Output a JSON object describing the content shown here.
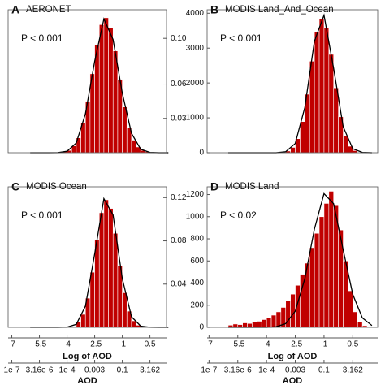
{
  "chart_data": [
    {
      "type": "histogram",
      "panel": "A",
      "title": "AERONET",
      "annotation": "P < 0.001",
      "color": "#c00000",
      "bins": [
        -6,
        -5.75,
        -5.5,
        -5.25,
        -5,
        -4.75,
        -4.5,
        -4.25,
        -4,
        -3.75,
        -3.5,
        -3.25,
        -3,
        -2.75,
        -2.5,
        -2.25,
        -2,
        -1.75,
        -1.5,
        -1.25,
        -1,
        -0.75,
        -0.5,
        -0.25,
        0,
        0.25,
        0.5,
        0.75,
        1,
        1.25,
        1.5
      ],
      "values": [
        0,
        0,
        0,
        0,
        0,
        0,
        0,
        0.001,
        0.002,
        0.006,
        0.013,
        0.026,
        0.045,
        0.069,
        0.094,
        0.112,
        0.118,
        0.109,
        0.089,
        0.064,
        0.04,
        0.022,
        0.011,
        0.005,
        0.002,
        0.001,
        0,
        0,
        0,
        0
      ],
      "axis": "y2",
      "xlim": [
        -7.2,
        1.4
      ],
      "y2lim": [
        0,
        0.125
      ],
      "y2ticks": [
        0.03,
        0.06,
        {
          "value": 0.1,
          "label": "0.10"
        }
      ],
      "fit": {
        "x": [
          -6,
          -5.5,
          -5,
          -4.5,
          -4,
          -3.5,
          -3,
          -2.5,
          -2,
          -1.5,
          -1,
          -0.5,
          0,
          0.5,
          1,
          1.5
        ],
        "y": [
          0,
          0,
          0,
          0.0001,
          0.0013,
          0.0085,
          0.034,
          0.08,
          0.117,
          0.099,
          0.052,
          0.017,
          0.003,
          0.0003,
          0,
          0
        ]
      }
    },
    {
      "type": "histogram",
      "panel": "B",
      "title": "MODIS Land_And_Ocean",
      "annotation": "P < 0.001",
      "color": "#c00000",
      "bins": [
        -6,
        -5.75,
        -5.5,
        -5.25,
        -5,
        -4.75,
        -4.5,
        -4.25,
        -4,
        -3.75,
        -3.5,
        -3.25,
        -3,
        -2.75,
        -2.5,
        -2.25,
        -2,
        -1.75,
        -1.5,
        -1.25,
        -1,
        -0.75,
        -0.5,
        -0.25,
        0,
        0.25,
        0.5,
        0.75,
        1,
        1.25,
        1.5
      ],
      "values": [
        0,
        0,
        0,
        0,
        0,
        0,
        0,
        0,
        0,
        0,
        3,
        13,
        48,
        152,
        402,
        893,
        1677,
        2625,
        3467,
        3848,
        3590,
        2820,
        1860,
        1030,
        480,
        186,
        61,
        17,
        0,
        0
      ],
      "axis": "y",
      "xlim": [
        -7.1,
        1.8
      ],
      "ylim": [
        0,
        4100
      ],
      "yticks": [
        0,
        1000,
        2000,
        3000,
        4000
      ],
      "fit": {
        "x": [
          -6,
          -5.5,
          -5,
          -4.5,
          -4,
          -3.5,
          -3,
          -2.5,
          -2,
          -1.5,
          -1,
          -0.5,
          0,
          0.5,
          1,
          1.5
        ],
        "y": [
          0,
          0,
          0,
          0,
          0,
          1,
          27,
          263,
          1298,
          3200,
          3945,
          2426,
          745,
          114,
          9,
          0
        ]
      }
    },
    {
      "type": "histogram",
      "panel": "C",
      "title": "MODIS Ocean",
      "annotation": "P < 0.001",
      "color": "#c00000",
      "bins": [
        -6,
        -5.75,
        -5.5,
        -5.25,
        -5,
        -4.75,
        -4.5,
        -4.25,
        -4,
        -3.75,
        -3.5,
        -3.25,
        -3,
        -2.75,
        -2.5,
        -2.25,
        -2,
        -1.75,
        -1.5,
        -1.25,
        -1,
        -0.75,
        -0.5,
        -0.25,
        0,
        0.25,
        0.5,
        0.75,
        1,
        1.25,
        1.5
      ],
      "values": [
        0,
        0,
        0,
        0,
        0,
        0,
        0,
        0,
        0,
        0.001,
        0.005,
        0.012,
        0.027,
        0.051,
        0.081,
        0.106,
        0.118,
        0.11,
        0.087,
        0.057,
        0.032,
        0.015,
        0.006,
        0.002,
        0.001,
        0,
        0,
        0,
        0,
        0
      ],
      "axis": "y2",
      "xlim": [
        -7.2,
        1.4
      ],
      "y2lim": [
        0,
        0.13
      ],
      "y2ticks": [
        0.04,
        0.08,
        0.12
      ],
      "fit": {
        "x": [
          -6,
          -5.5,
          -5,
          -4.5,
          -4,
          -3.5,
          -3,
          -2.5,
          -2,
          -1.5,
          -1,
          -0.5,
          0,
          0.5,
          1,
          1.5
        ],
        "y": [
          0,
          0,
          0,
          0,
          0.0002,
          0.0028,
          0.0196,
          0.068,
          0.119,
          0.104,
          0.045,
          0.0098,
          0.0011,
          0.0001,
          0,
          0
        ]
      },
      "xlabel": "Log of AOD",
      "xticks": [
        -7,
        -5.5,
        -4,
        -2.5,
        -1,
        0.5
      ],
      "x2label": "AOD",
      "x2ticks": [
        {
          "value": -7,
          "label": "1e-7"
        },
        {
          "value": -5.5,
          "label": "3.16e-6"
        },
        {
          "value": -4,
          "label": "1e-4"
        },
        {
          "value": -2.5,
          "label": "0.003"
        },
        {
          "value": -1,
          "label": "0.1"
        },
        {
          "value": 0.5,
          "label": "3.162"
        }
      ]
    },
    {
      "type": "histogram",
      "panel": "D",
      "title": "MODIS Land",
      "annotation": "P < 0.02",
      "color": "#c00000",
      "bins": [
        -6,
        -5.75,
        -5.5,
        -5.25,
        -5,
        -4.75,
        -4.5,
        -4.25,
        -4,
        -3.75,
        -3.5,
        -3.25,
        -3,
        -2.75,
        -2.5,
        -2.25,
        -2,
        -1.75,
        -1.5,
        -1.25,
        -1,
        -0.75,
        -0.5,
        -0.25,
        0,
        0.25,
        0.5,
        0.75,
        1,
        1.25,
        1.5
      ],
      "values": [
        20,
        30,
        25,
        40,
        35,
        50,
        55,
        70,
        85,
        110,
        140,
        180,
        240,
        300,
        380,
        480,
        580,
        720,
        850,
        1000,
        1120,
        1230,
        1100,
        880,
        600,
        330,
        140,
        50,
        15,
        0
      ],
      "axis": "y",
      "xlim": [
        -7.1,
        1.8
      ],
      "ylim": [
        0,
        1270
      ],
      "yticks": [
        0,
        200,
        400,
        600,
        800,
        1000,
        1200
      ],
      "fit": {
        "x": [
          -6,
          -5.5,
          -5,
          -4.5,
          -4,
          -3.5,
          -3,
          -2.5,
          -2,
          -1.5,
          -1,
          -0.5,
          0,
          0.5,
          1,
          1.5
        ],
        "y": [
          0,
          0,
          0,
          0,
          0,
          5,
          33,
          146,
          440,
          888,
          1208,
          1118,
          700,
          298,
          85,
          17
        ]
      },
      "xlabel": "Log of AOD",
      "xticks": [
        -7,
        -5.5,
        -4,
        -2.5,
        -1,
        0.5
      ],
      "x2label": "AOD",
      "x2ticks": [
        {
          "value": -7,
          "label": "1e-7"
        },
        {
          "value": -5.5,
          "label": "3.16e-6"
        },
        {
          "value": -4,
          "label": "1e-4"
        },
        {
          "value": -2.5,
          "label": "0.003"
        },
        {
          "value": -1,
          "label": "0.1"
        },
        {
          "value": 0.5,
          "label": "3.162"
        }
      ]
    }
  ]
}
